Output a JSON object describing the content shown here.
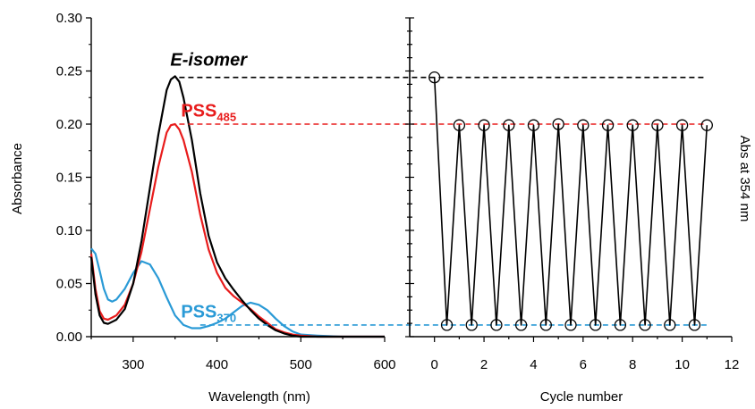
{
  "colors": {
    "black": "#000000",
    "red": "#e81c1c",
    "blue": "#2a9ad6"
  },
  "chart_data": [
    {
      "type": "line",
      "xlabel": "Wavelength (nm)",
      "ylabel": "Absorbance",
      "xlim": [
        250,
        600
      ],
      "ylim": [
        0.0,
        0.3
      ],
      "xticks": [
        300,
        400,
        500,
        600
      ],
      "yticks": [
        0.0,
        0.05,
        0.1,
        0.15,
        0.2,
        0.25,
        0.3
      ],
      "ytick_labels": [
        "0.00",
        "0.05",
        "0.10",
        "0.15",
        "0.20",
        "0.25",
        "0.30"
      ],
      "series": [
        {
          "name": "E-isomer",
          "color": "#000000",
          "x": [
            250,
            255,
            260,
            265,
            270,
            280,
            290,
            300,
            310,
            320,
            330,
            340,
            345,
            350,
            355,
            360,
            370,
            380,
            390,
            400,
            410,
            420,
            430,
            440,
            450,
            460,
            470,
            480,
            490,
            500,
            520,
            550,
            600
          ],
          "y": [
            0.075,
            0.04,
            0.02,
            0.013,
            0.012,
            0.016,
            0.026,
            0.05,
            0.09,
            0.14,
            0.19,
            0.232,
            0.242,
            0.245,
            0.24,
            0.225,
            0.185,
            0.135,
            0.095,
            0.07,
            0.055,
            0.044,
            0.034,
            0.025,
            0.017,
            0.011,
            0.006,
            0.003,
            0.001,
            0.0,
            0.0,
            0.0,
            0.0
          ]
        },
        {
          "name": "PSS485",
          "color": "#e81c1c",
          "x": [
            250,
            255,
            260,
            265,
            270,
            280,
            290,
            300,
            310,
            320,
            330,
            340,
            345,
            350,
            355,
            360,
            370,
            380,
            390,
            400,
            410,
            420,
            430,
            440,
            450,
            460,
            470,
            480,
            490,
            500,
            520,
            550,
            600
          ],
          "y": [
            0.078,
            0.045,
            0.024,
            0.017,
            0.016,
            0.02,
            0.03,
            0.05,
            0.08,
            0.12,
            0.16,
            0.192,
            0.199,
            0.2,
            0.195,
            0.185,
            0.155,
            0.115,
            0.082,
            0.06,
            0.046,
            0.038,
            0.032,
            0.026,
            0.019,
            0.013,
            0.007,
            0.004,
            0.002,
            0.001,
            0.0,
            0.0,
            0.0
          ]
        },
        {
          "name": "PSS370",
          "color": "#2a9ad6",
          "x": [
            250,
            255,
            260,
            265,
            270,
            275,
            280,
            290,
            300,
            310,
            320,
            330,
            340,
            350,
            360,
            370,
            380,
            390,
            400,
            410,
            420,
            430,
            440,
            450,
            460,
            470,
            480,
            490,
            500,
            520,
            550,
            600
          ],
          "y": [
            0.083,
            0.078,
            0.062,
            0.045,
            0.035,
            0.033,
            0.035,
            0.045,
            0.06,
            0.071,
            0.068,
            0.055,
            0.037,
            0.02,
            0.011,
            0.008,
            0.008,
            0.01,
            0.013,
            0.017,
            0.023,
            0.029,
            0.032,
            0.03,
            0.025,
            0.017,
            0.01,
            0.005,
            0.002,
            0.001,
            0.0,
            0.0
          ]
        }
      ],
      "annotations": [
        {
          "text": "E-isomer",
          "style": "bold-italic",
          "color": "#000000",
          "x": 390,
          "y": 0.255
        },
        {
          "text": "PSS",
          "sub": "485",
          "style": "bold",
          "color": "#e81c1c",
          "x": 390,
          "y": 0.207
        },
        {
          "text": "PSS",
          "sub": "370",
          "style": "bold",
          "color": "#2a9ad6",
          "x": 390,
          "y": 0.018
        }
      ]
    },
    {
      "type": "line",
      "xlabel": "Cycle number",
      "ylabel": "Abs at 354 nm",
      "xlim": [
        -1,
        12
      ],
      "ylim": [
        0.0,
        0.3
      ],
      "xticks": [
        0,
        2,
        4,
        6,
        8,
        10,
        12
      ],
      "series": [
        {
          "name": "",
          "color": "#000000",
          "marker": "open-circle",
          "x": [
            0,
            0.5,
            1,
            1.5,
            2,
            2.5,
            3,
            3.5,
            4,
            4.5,
            5,
            5.5,
            6,
            6.5,
            7,
            7.5,
            8,
            8.5,
            9,
            9.5,
            10,
            10.5,
            11
          ],
          "y": [
            0.244,
            0.011,
            0.199,
            0.011,
            0.199,
            0.011,
            0.199,
            0.011,
            0.199,
            0.011,
            0.2,
            0.011,
            0.199,
            0.011,
            0.199,
            0.011,
            0.199,
            0.011,
            0.199,
            0.011,
            0.199,
            0.011,
            0.199
          ]
        }
      ]
    }
  ],
  "reference_lines": [
    {
      "y": 0.244,
      "x_from_nm": 355,
      "color": "#000000"
    },
    {
      "y": 0.2,
      "x_from_nm": 355,
      "color": "#e81c1c"
    },
    {
      "y": 0.011,
      "x_from_nm": 380,
      "color": "#2a9ad6"
    }
  ]
}
